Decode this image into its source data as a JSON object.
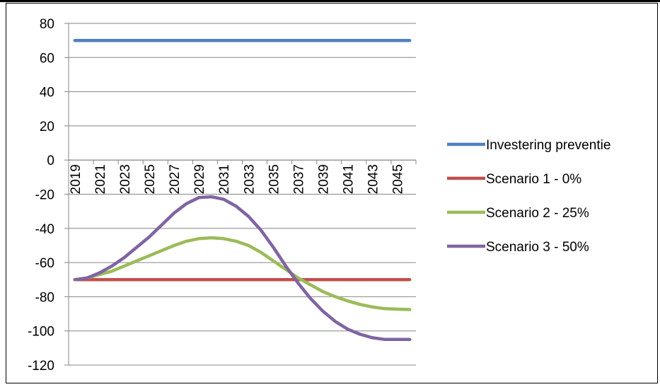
{
  "chart_data": {
    "type": "line",
    "title": "",
    "xlabel": "",
    "ylabel": "",
    "ylim": [
      -120,
      80
    ],
    "y_ticks": [
      80,
      60,
      40,
      20,
      0,
      -20,
      -40,
      -60,
      -80,
      -100,
      -120
    ],
    "x": [
      2019,
      2020,
      2021,
      2022,
      2023,
      2024,
      2025,
      2026,
      2027,
      2028,
      2029,
      2030,
      2031,
      2032,
      2033,
      2034,
      2035,
      2036,
      2037,
      2038,
      2039,
      2040,
      2041,
      2042,
      2043,
      2044,
      2045,
      2046
    ],
    "x_tick_labels": [
      "2019",
      "2021",
      "2023",
      "2025",
      "2027",
      "2029",
      "2031",
      "2033",
      "2035",
      "2037",
      "2039",
      "2041",
      "2043",
      "2045"
    ],
    "grid": "horizontal",
    "legend_position": "right",
    "series": [
      {
        "name": "Investering preventie",
        "color": "#4f81bd",
        "values": [
          70,
          70,
          70,
          70,
          70,
          70,
          70,
          70,
          70,
          70,
          70,
          70,
          70,
          70,
          70,
          70,
          70,
          70,
          70,
          70,
          70,
          70,
          70,
          70,
          70,
          70,
          70,
          70
        ]
      },
      {
        "name": "Scenario 1 - 0%",
        "color": "#c0504d",
        "values": [
          -70,
          -70,
          -70,
          -70,
          -70,
          -70,
          -70,
          -70,
          -70,
          -70,
          -70,
          -70,
          -70,
          -70,
          -70,
          -70,
          -70,
          -70,
          -70,
          -70,
          -70,
          -70,
          -70,
          -70,
          -70,
          -70,
          -70,
          -70
        ]
      },
      {
        "name": "Scenario 2 - 25%",
        "color": "#9bbb59",
        "values": [
          -70,
          -69,
          -67,
          -65,
          -62,
          -59,
          -56,
          -53,
          -50,
          -47.5,
          -46,
          -45.5,
          -46,
          -47.5,
          -50,
          -54,
          -59,
          -64,
          -69,
          -73,
          -77,
          -80,
          -82.5,
          -84.5,
          -86,
          -87,
          -87.3,
          -87.5
        ]
      },
      {
        "name": "Scenario 3 - 50%",
        "color": "#8064a2",
        "values": [
          -70,
          -69,
          -66,
          -62,
          -57,
          -51,
          -45,
          -38,
          -31,
          -25.5,
          -22,
          -21.5,
          -23,
          -27,
          -33,
          -41,
          -51,
          -62,
          -72,
          -81,
          -88.5,
          -94.5,
          -99,
          -102,
          -104,
          -105,
          -105,
          -105
        ]
      }
    ]
  }
}
